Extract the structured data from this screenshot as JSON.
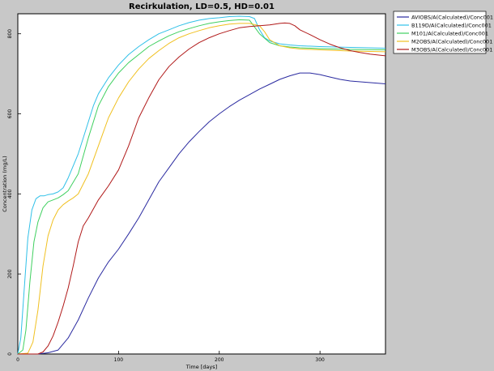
{
  "chart_data": {
    "type": "line",
    "title": "Recirkulation, LD=0.5, HD=0.01",
    "xlabel": "Time [days]",
    "ylabel": "Concentration (mg/L)",
    "xlim": [
      0,
      365
    ],
    "ylim": [
      0,
      850
    ],
    "x_ticks": [
      0,
      100,
      200,
      300
    ],
    "x_tick_labels": [
      "0",
      "100",
      "200",
      "300"
    ],
    "y_ticks": [
      0,
      200,
      400,
      600,
      800
    ],
    "y_tick_labels": [
      "0",
      "200",
      "400",
      "600",
      "800"
    ],
    "grid": false,
    "legend_position": "top-right outside",
    "series": [
      {
        "name": "AVIOBS/A(Calculated)/Conc001",
        "color": "#2a2aa0",
        "x": [
          0,
          20,
          30,
          40,
          50,
          60,
          70,
          80,
          90,
          100,
          110,
          120,
          130,
          140,
          150,
          160,
          170,
          180,
          190,
          200,
          210,
          220,
          230,
          240,
          250,
          260,
          270,
          280,
          290,
          300,
          310,
          320,
          330,
          340,
          350,
          365
        ],
        "y": [
          0,
          0,
          3,
          10,
          40,
          85,
          140,
          190,
          230,
          262,
          300,
          340,
          385,
          430,
          465,
          500,
          530,
          556,
          580,
          600,
          618,
          634,
          648,
          662,
          674,
          686,
          695,
          702,
          702,
          698,
          692,
          686,
          682,
          680,
          678,
          675
        ]
      },
      {
        "name": "B119D/A(Calculated)/Conc001",
        "color": "#30c0e8",
        "x": [
          0,
          3,
          6,
          10,
          14,
          18,
          22,
          26,
          30,
          35,
          40,
          45,
          50,
          55,
          60,
          70,
          75,
          80,
          90,
          100,
          110,
          120,
          130,
          140,
          150,
          160,
          170,
          180,
          190,
          200,
          210,
          220,
          230,
          235,
          240,
          245,
          250,
          260,
          270,
          280,
          300,
          330,
          365
        ],
        "y": [
          0,
          40,
          150,
          290,
          360,
          388,
          395,
          395,
          398,
          400,
          405,
          415,
          440,
          470,
          500,
          580,
          620,
          650,
          690,
          722,
          748,
          768,
          785,
          800,
          810,
          820,
          828,
          834,
          838,
          840,
          843,
          844,
          843,
          838,
          810,
          790,
          782,
          775,
          772,
          770,
          768,
          766,
          764
        ]
      },
      {
        "name": "M101/A(Calculated)/Conc001",
        "color": "#40d060",
        "x": [
          0,
          5,
          8,
          12,
          16,
          20,
          25,
          30,
          35,
          40,
          45,
          50,
          60,
          70,
          80,
          90,
          100,
          110,
          120,
          130,
          140,
          150,
          160,
          170,
          180,
          190,
          200,
          210,
          220,
          230,
          240,
          250,
          260,
          270,
          280,
          300,
          330,
          365
        ],
        "y": [
          0,
          10,
          60,
          180,
          280,
          330,
          365,
          380,
          385,
          390,
          398,
          408,
          450,
          540,
          620,
          668,
          702,
          728,
          748,
          768,
          782,
          795,
          805,
          813,
          820,
          826,
          830,
          833,
          835,
          834,
          800,
          778,
          770,
          767,
          765,
          763,
          761,
          760
        ]
      },
      {
        "name": "M2OBS/A(Calculated)/Conc001",
        "color": "#f0c020",
        "x": [
          0,
          10,
          15,
          20,
          25,
          30,
          35,
          40,
          45,
          50,
          55,
          60,
          70,
          80,
          90,
          100,
          110,
          120,
          130,
          140,
          150,
          160,
          170,
          180,
          190,
          200,
          210,
          220,
          230,
          240,
          245,
          250,
          260,
          270,
          280,
          300,
          330,
          365
        ],
        "y": [
          0,
          2,
          30,
          110,
          220,
          295,
          335,
          360,
          373,
          382,
          390,
          400,
          450,
          520,
          590,
          640,
          680,
          712,
          738,
          758,
          776,
          790,
          800,
          808,
          815,
          820,
          824,
          826,
          826,
          820,
          805,
          785,
          770,
          765,
          762,
          760,
          757,
          755
        ]
      },
      {
        "name": "M3OBS/A(Calculated)/Conc001",
        "color": "#b01818",
        "x": [
          0,
          20,
          25,
          30,
          35,
          40,
          45,
          50,
          55,
          60,
          65,
          70,
          80,
          90,
          100,
          110,
          120,
          130,
          140,
          150,
          160,
          170,
          180,
          190,
          200,
          210,
          220,
          230,
          240,
          250,
          260,
          265,
          270,
          275,
          280,
          290,
          300,
          310,
          320,
          330,
          340,
          350,
          365
        ],
        "y": [
          0,
          0,
          5,
          20,
          45,
          80,
          120,
          165,
          220,
          280,
          320,
          340,
          385,
          420,
          460,
          520,
          590,
          640,
          685,
          718,
          742,
          762,
          778,
          790,
          800,
          808,
          815,
          818,
          820,
          822,
          826,
          827,
          826,
          820,
          810,
          798,
          785,
          774,
          765,
          758,
          753,
          749,
          745
        ]
      }
    ]
  }
}
